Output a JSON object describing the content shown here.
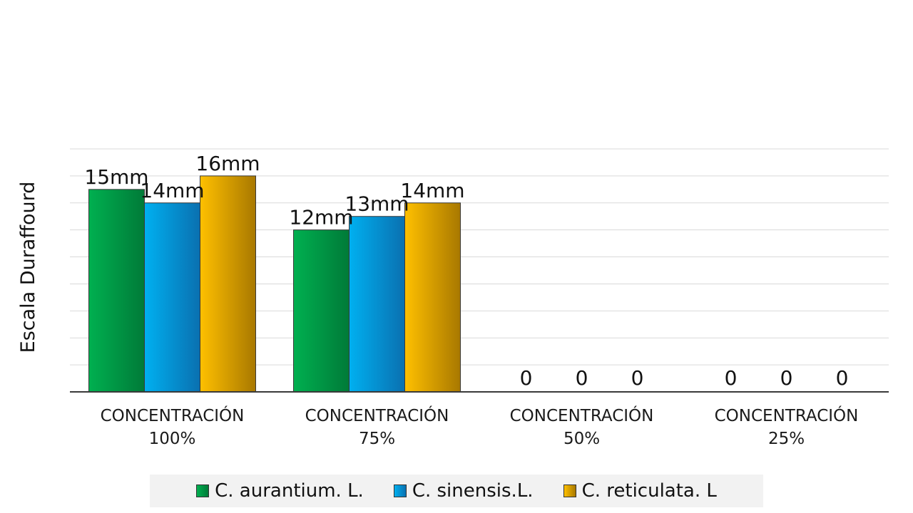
{
  "chart_data": {
    "type": "bar",
    "title": "",
    "xlabel": "",
    "ylabel": "Escala Duraffourd",
    "ylim": [
      0,
      18
    ],
    "grid": true,
    "legend_position": "bottom",
    "categories": [
      [
        "CONCENTRACIÓN",
        "100%"
      ],
      [
        "CONCENTRACIÓN",
        "75%"
      ],
      [
        "CONCENTRACIÓN",
        "50%"
      ],
      [
        "CONCENTRACIÓN",
        "25%"
      ]
    ],
    "series": [
      {
        "name": "C. aurantium. L.",
        "values": [
          15,
          12,
          0,
          0
        ],
        "labels": [
          "15mm",
          "12mm",
          "0",
          "0"
        ],
        "color_light": "#00b050",
        "color_dark": "#007a38"
      },
      {
        "name": "C. sinensis.L.",
        "values": [
          14,
          13,
          0,
          0
        ],
        "labels": [
          "14mm",
          "13mm",
          "0",
          "0"
        ],
        "color_light": "#00b0f0",
        "color_dark": "#0a70b0"
      },
      {
        "name": "C. reticulata. L",
        "values": [
          16,
          14,
          0,
          0
        ],
        "labels": [
          "16mm",
          "14mm",
          "0",
          "0"
        ],
        "color_light": "#ffc000",
        "color_dark": "#a87800"
      }
    ]
  }
}
